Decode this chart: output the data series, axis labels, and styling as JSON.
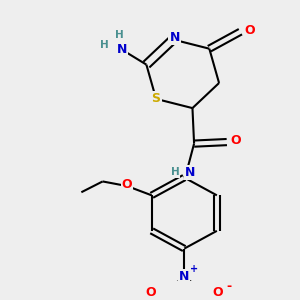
{
  "bg_color": "#eeeeee",
  "atom_colors": {
    "C": "#000000",
    "N": "#0000cc",
    "O": "#ff0000",
    "S": "#ccaa00",
    "H": "#4a9090"
  },
  "bond_color": "#000000",
  "line_width": 1.5,
  "figsize": [
    3.0,
    3.0
  ],
  "dpi": 100
}
